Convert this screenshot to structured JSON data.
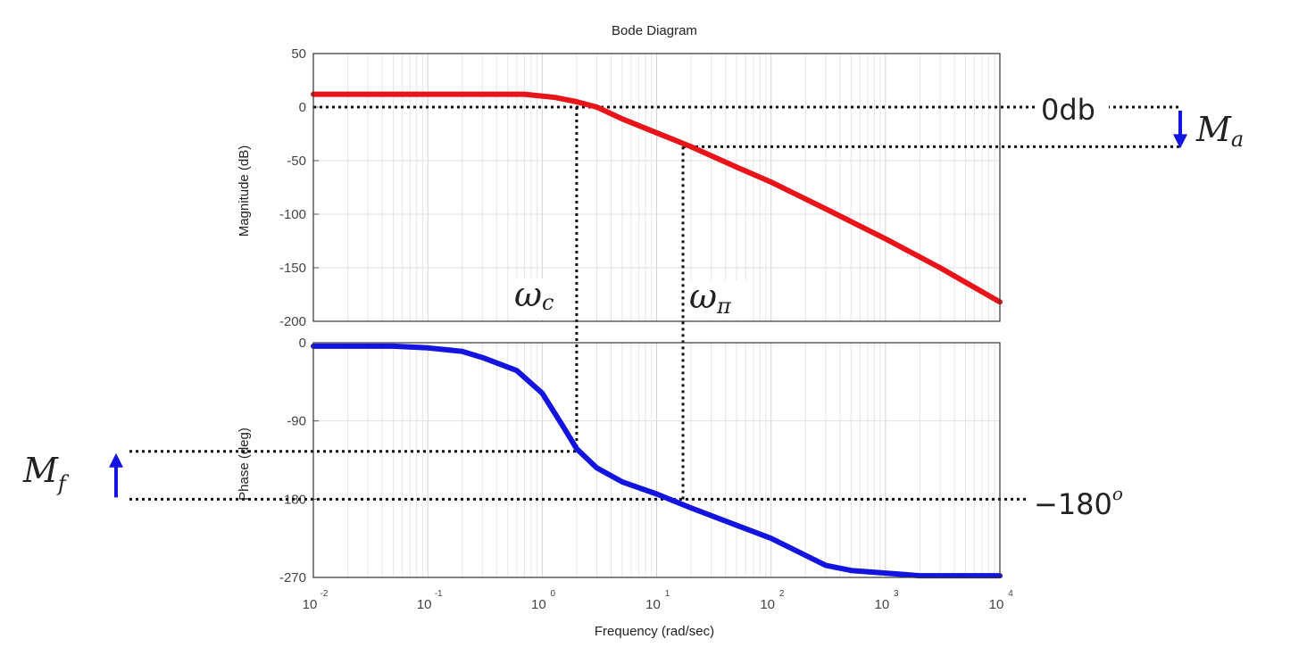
{
  "chart_data": {
    "type": "line",
    "title": "Bode Diagram",
    "xlabel": "Frequency  (rad/sec)",
    "xscale": "log",
    "xlim": [
      0.01,
      10000
    ],
    "x_ticks": [
      {
        "base": "10",
        "exp": "-2"
      },
      {
        "base": "10",
        "exp": "-1"
      },
      {
        "base": "10",
        "exp": "0"
      },
      {
        "base": "10",
        "exp": "1"
      },
      {
        "base": "10",
        "exp": "2"
      },
      {
        "base": "10",
        "exp": "3"
      },
      {
        "base": "10",
        "exp": "4"
      }
    ],
    "grid": true,
    "subplots": [
      {
        "ylabel": "Magnitude (dB)",
        "ylim": [
          -200,
          50
        ],
        "yticks": [
          50,
          0,
          -50,
          -100,
          -150,
          -200
        ],
        "ytick_labels": [
          "50",
          "0",
          "-50",
          "-100",
          "-150",
          "-200"
        ],
        "series": [
          {
            "color": "#e8141a",
            "x": [
              0.01,
              0.1,
              0.7,
              1.3,
              2,
              3,
              5,
              10,
              20,
              50,
              100,
              300,
              1000,
              3000,
              10000
            ],
            "y": [
              12,
              12,
              12,
              9,
              5,
              0,
              -11,
              -24,
              -37,
              -56,
              -70,
              -95,
              -123,
              -150,
              -182
            ]
          }
        ]
      },
      {
        "ylabel": "Phase (deg)",
        "ylim": [
          -270,
          0
        ],
        "yticks": [
          0,
          -90,
          -180,
          -270
        ],
        "ytick_labels": [
          "0",
          "-90",
          "-180",
          "-270"
        ],
        "series": [
          {
            "color": "#1414e0",
            "x": [
              0.01,
              0.05,
              0.1,
              0.2,
              0.3,
              0.6,
              1,
              1.5,
              2,
              3,
              5,
              10,
              20,
              50,
              100,
              300,
              500,
              1000,
              2000,
              10000
            ],
            "y": [
              -4,
              -4,
              -6,
              -10,
              -17,
              -32,
              -58,
              -95,
              -122,
              -144,
              -160,
              -174,
              -190,
              -210,
              -225,
              -256,
              -262,
              -265,
              -268,
              -268
            ]
          }
        ]
      }
    ],
    "annotations": {
      "zero_db": {
        "text": "0db",
        "y_db": 0
      },
      "margin_amp": {
        "main": "M",
        "sub": "a"
      },
      "margin_phase": {
        "main": "M",
        "sub": "f",
        "y_deg": -125
      },
      "minus_180": {
        "text": "−180",
        "sup": "o",
        "y_deg": -180
      },
      "omega_c": {
        "main": "ω",
        "sub": "c",
        "x": 2,
        "y_db": 0
      },
      "omega_pi": {
        "main": "ω",
        "sub": "π",
        "x": 17,
        "y_db": -37
      }
    }
  }
}
